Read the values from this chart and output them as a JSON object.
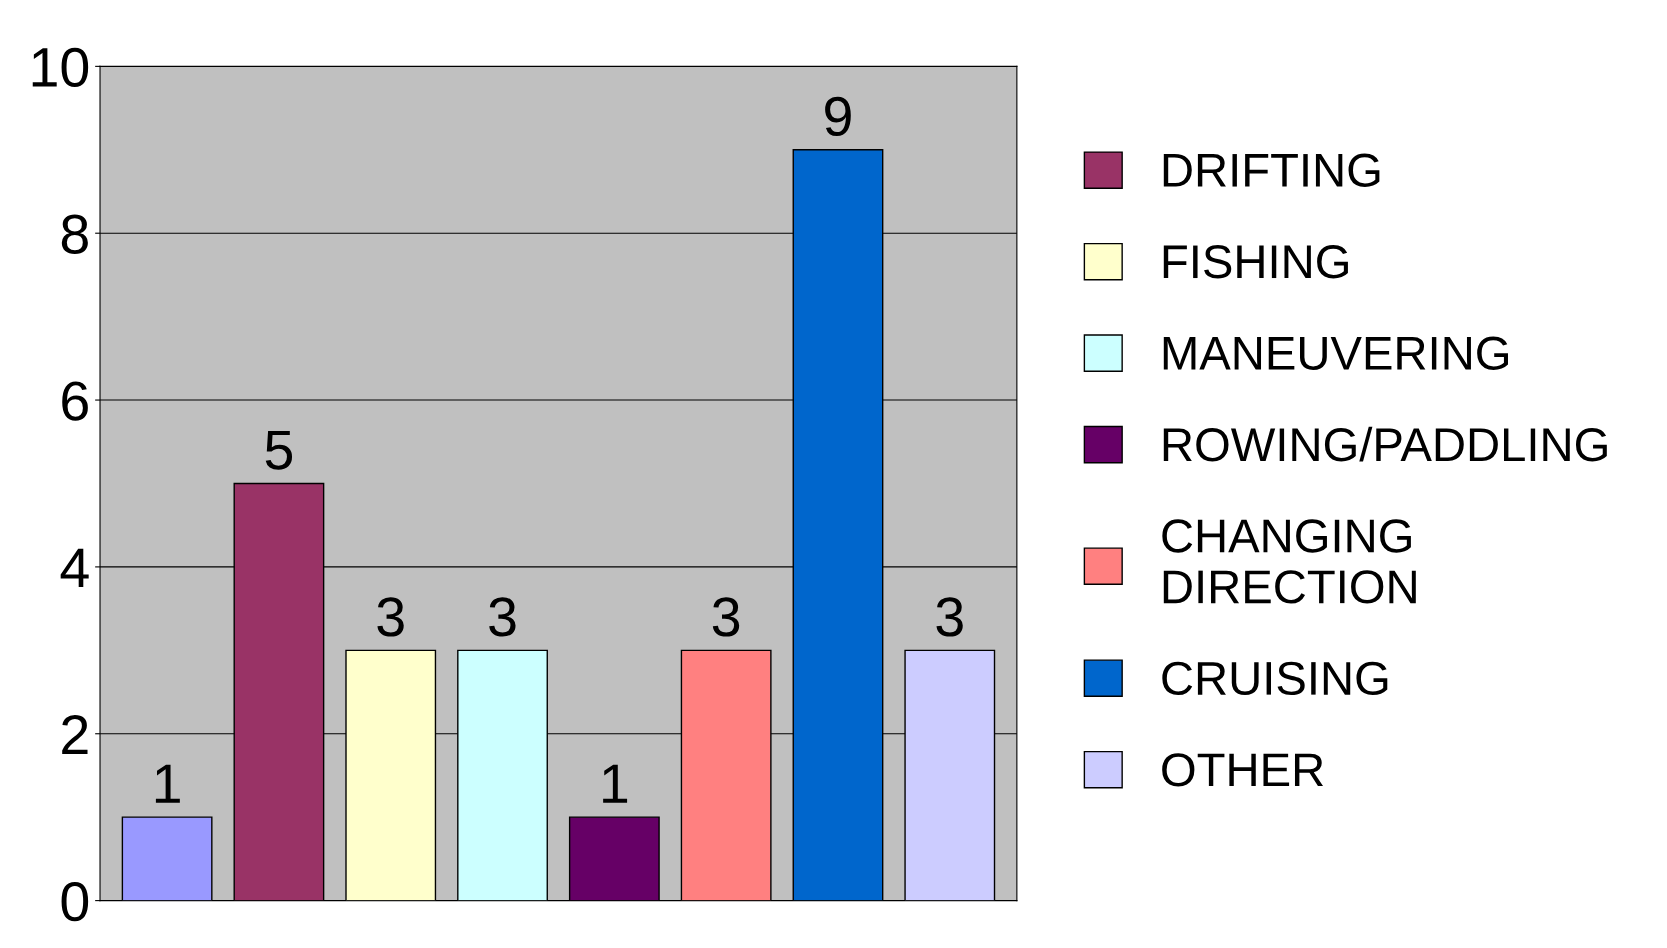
{
  "chart_data": {
    "type": "bar",
    "categories": [
      null,
      null,
      null,
      null,
      null,
      null,
      null,
      null
    ],
    "series": [
      {
        "color": "#9999ff",
        "values": [
          1,
          null,
          null,
          null,
          null,
          null,
          null,
          null
        ]
      },
      {
        "name": "DRIFTING",
        "color": "#993366",
        "values": [
          null,
          5,
          null,
          null,
          null,
          null,
          null,
          null
        ]
      },
      {
        "name": "FISHING",
        "color": "#ffffcc",
        "values": [
          null,
          null,
          3,
          null,
          null,
          null,
          null,
          null
        ]
      },
      {
        "name": "MANEUVERING",
        "color": "#ccffff",
        "values": [
          null,
          null,
          null,
          3,
          null,
          null,
          null,
          null
        ]
      },
      {
        "name": "ROWING/PADDLING",
        "color": "#660066",
        "values": [
          null,
          null,
          null,
          null,
          1,
          null,
          null,
          null
        ]
      },
      {
        "name": "CHANGING\nDIRECTION",
        "color": "#ff8080",
        "values": [
          null,
          null,
          null,
          null,
          null,
          3,
          null,
          null
        ]
      },
      {
        "name": "CRUISING",
        "color": "#0066cc",
        "values": [
          null,
          null,
          null,
          null,
          null,
          null,
          9,
          null
        ]
      },
      {
        "name": "OTHER",
        "color": "#ccccff",
        "values": [
          null,
          null,
          null,
          null,
          null,
          null,
          null,
          3
        ]
      }
    ],
    "ylim": [
      0,
      10
    ],
    "yticks": [
      0,
      2,
      4,
      6,
      8,
      10
    ],
    "grid": "y",
    "legend": "right",
    "data_labels": true
  }
}
